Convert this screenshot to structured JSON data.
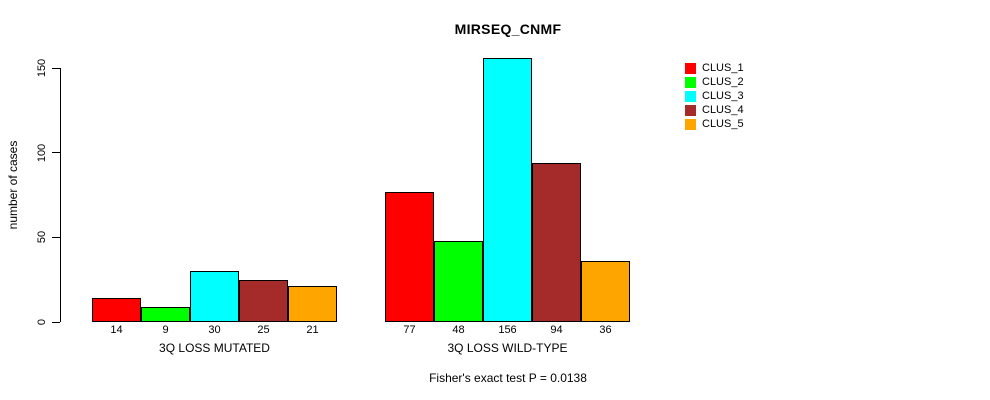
{
  "chart_data": {
    "type": "bar",
    "title": "MIRSEQ_CNMF",
    "ylabel": "number of cases",
    "xlabel": "",
    "ylim": [
      0,
      156
    ],
    "yticks": [
      0,
      50,
      100,
      150
    ],
    "grid": false,
    "legend_position": "right",
    "categories": [
      "3Q LOSS MUTATED",
      "3Q LOSS WILD-TYPE"
    ],
    "series": [
      {
        "name": "CLUS_1",
        "color": "#FF0000",
        "values": [
          14,
          77
        ]
      },
      {
        "name": "CLUS_2",
        "color": "#00FF00",
        "values": [
          9,
          48
        ]
      },
      {
        "name": "CLUS_3",
        "color": "#00FFFF",
        "values": [
          30,
          156
        ]
      },
      {
        "name": "CLUS_4",
        "color": "#A52A2A",
        "values": [
          25,
          94
        ]
      },
      {
        "name": "CLUS_5",
        "color": "#FFA500",
        "values": [
          21,
          36
        ]
      }
    ],
    "bar_value_labels": {
      "3Q LOSS MUTATED": [
        14,
        9,
        30,
        25,
        21
      ],
      "3Q LOSS WILD-TYPE": [
        77,
        48,
        156,
        94,
        36
      ]
    },
    "annotation": "Fisher's exact test P = 0.0138",
    "colors": {
      "background": "#FFFFFF",
      "bar_border": "#000000",
      "text": "#000000"
    }
  }
}
